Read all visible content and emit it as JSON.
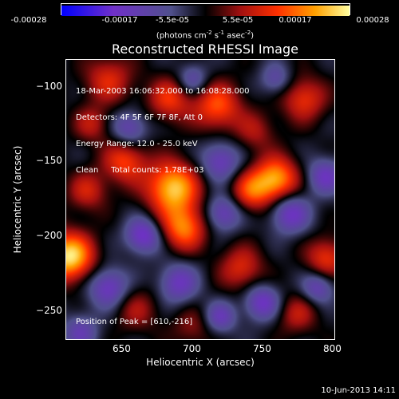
{
  "colorbar": {
    "tick_labels": [
      "-0.00028",
      "-0.00017",
      "-5.5e-05",
      "5.5e-05",
      "0.00017",
      "0.00028"
    ],
    "units_parts": [
      "(photons cm",
      "-2",
      " s",
      "-1",
      " asec",
      "-2",
      ")"
    ]
  },
  "title": "Reconstructed RHESSI Image",
  "info_lines": [
    "18-Mar-2003 16:06:32.000 to 16:08:28.000",
    "Detectors: 4F 5F 6F 7F 8F, Att 0",
    "Energy Range: 12.0 - 25.0 keV",
    "Clean     Total counts: 1.78E+03"
  ],
  "peak_text": "Position of Peak = [610,-216]",
  "footer_timestamp": "10-Jun-2013 14:11",
  "chart_data": {
    "type": "heatmap",
    "title": "Reconstructed RHESSI Image",
    "xlabel": "Heliocentric X (arcsec)",
    "ylabel": "Heliocentric Y (arcsec)",
    "xlim": [
      610,
      802
    ],
    "ylim": [
      -270,
      -82
    ],
    "x_ticks": [
      650,
      700,
      750,
      800
    ],
    "y_ticks": [
      -100,
      -150,
      -200,
      -250
    ],
    "value_range": [
      -0.00028,
      0.00028
    ],
    "value_units": "photons cm^-2 s^-1 asec^-2",
    "peak_position": [
      610,
      -216
    ],
    "colormap": [
      "#0000ff",
      "#7030c8",
      "#50508c",
      "#000000",
      "#a01010",
      "#ff3000",
      "#ffa000",
      "#ffffa0"
    ],
    "blobs": [
      {
        "x": 612,
        "y": -214,
        "v": 1.0,
        "r": 12
      },
      {
        "x": 686,
        "y": -168,
        "v": 0.92,
        "r": 13
      },
      {
        "x": 694,
        "y": -195,
        "v": 0.7,
        "r": 11
      },
      {
        "x": 760,
        "y": -162,
        "v": 0.82,
        "r": 11
      },
      {
        "x": 742,
        "y": -170,
        "v": 0.55,
        "r": 10
      },
      {
        "x": 718,
        "y": -113,
        "v": 0.6,
        "r": 12
      },
      {
        "x": 684,
        "y": -108,
        "v": 0.5,
        "r": 11
      },
      {
        "x": 640,
        "y": -95,
        "v": 0.45,
        "r": 12
      },
      {
        "x": 780,
        "y": -108,
        "v": 0.5,
        "r": 11
      },
      {
        "x": 652,
        "y": -150,
        "v": 0.55,
        "r": 11
      },
      {
        "x": 625,
        "y": -170,
        "v": 0.4,
        "r": 10
      },
      {
        "x": 735,
        "y": -222,
        "v": 0.45,
        "r": 11
      },
      {
        "x": 796,
        "y": -215,
        "v": 0.5,
        "r": 10
      },
      {
        "x": 775,
        "y": -253,
        "v": 0.35,
        "r": 10
      },
      {
        "x": 660,
        "y": -250,
        "v": 0.3,
        "r": 11
      },
      {
        "x": 700,
        "y": -262,
        "v": 0.25,
        "r": 10
      },
      {
        "x": 628,
        "y": -125,
        "v": 0.35,
        "r": 9
      },
      {
        "x": 745,
        "y": -130,
        "v": 0.3,
        "r": 10
      },
      {
        "x": 665,
        "y": -200,
        "v": -0.6,
        "r": 9
      },
      {
        "x": 720,
        "y": -150,
        "v": -0.5,
        "r": 10
      },
      {
        "x": 655,
        "y": -128,
        "v": -0.45,
        "r": 9
      },
      {
        "x": 770,
        "y": -185,
        "v": -0.55,
        "r": 10
      },
      {
        "x": 722,
        "y": -185,
        "v": -0.5,
        "r": 9
      },
      {
        "x": 640,
        "y": -235,
        "v": -0.55,
        "r": 10
      },
      {
        "x": 690,
        "y": -232,
        "v": -0.5,
        "r": 10
      },
      {
        "x": 750,
        "y": -245,
        "v": -0.55,
        "r": 9
      },
      {
        "x": 795,
        "y": -160,
        "v": -0.5,
        "r": 9
      },
      {
        "x": 700,
        "y": -95,
        "v": -0.4,
        "r": 8
      },
      {
        "x": 760,
        "y": -95,
        "v": -0.35,
        "r": 8
      },
      {
        "x": 720,
        "y": -255,
        "v": -0.45,
        "r": 8
      },
      {
        "x": 620,
        "y": -265,
        "v": -0.4,
        "r": 9
      },
      {
        "x": 790,
        "y": -235,
        "v": -0.45,
        "r": 8
      }
    ]
  }
}
